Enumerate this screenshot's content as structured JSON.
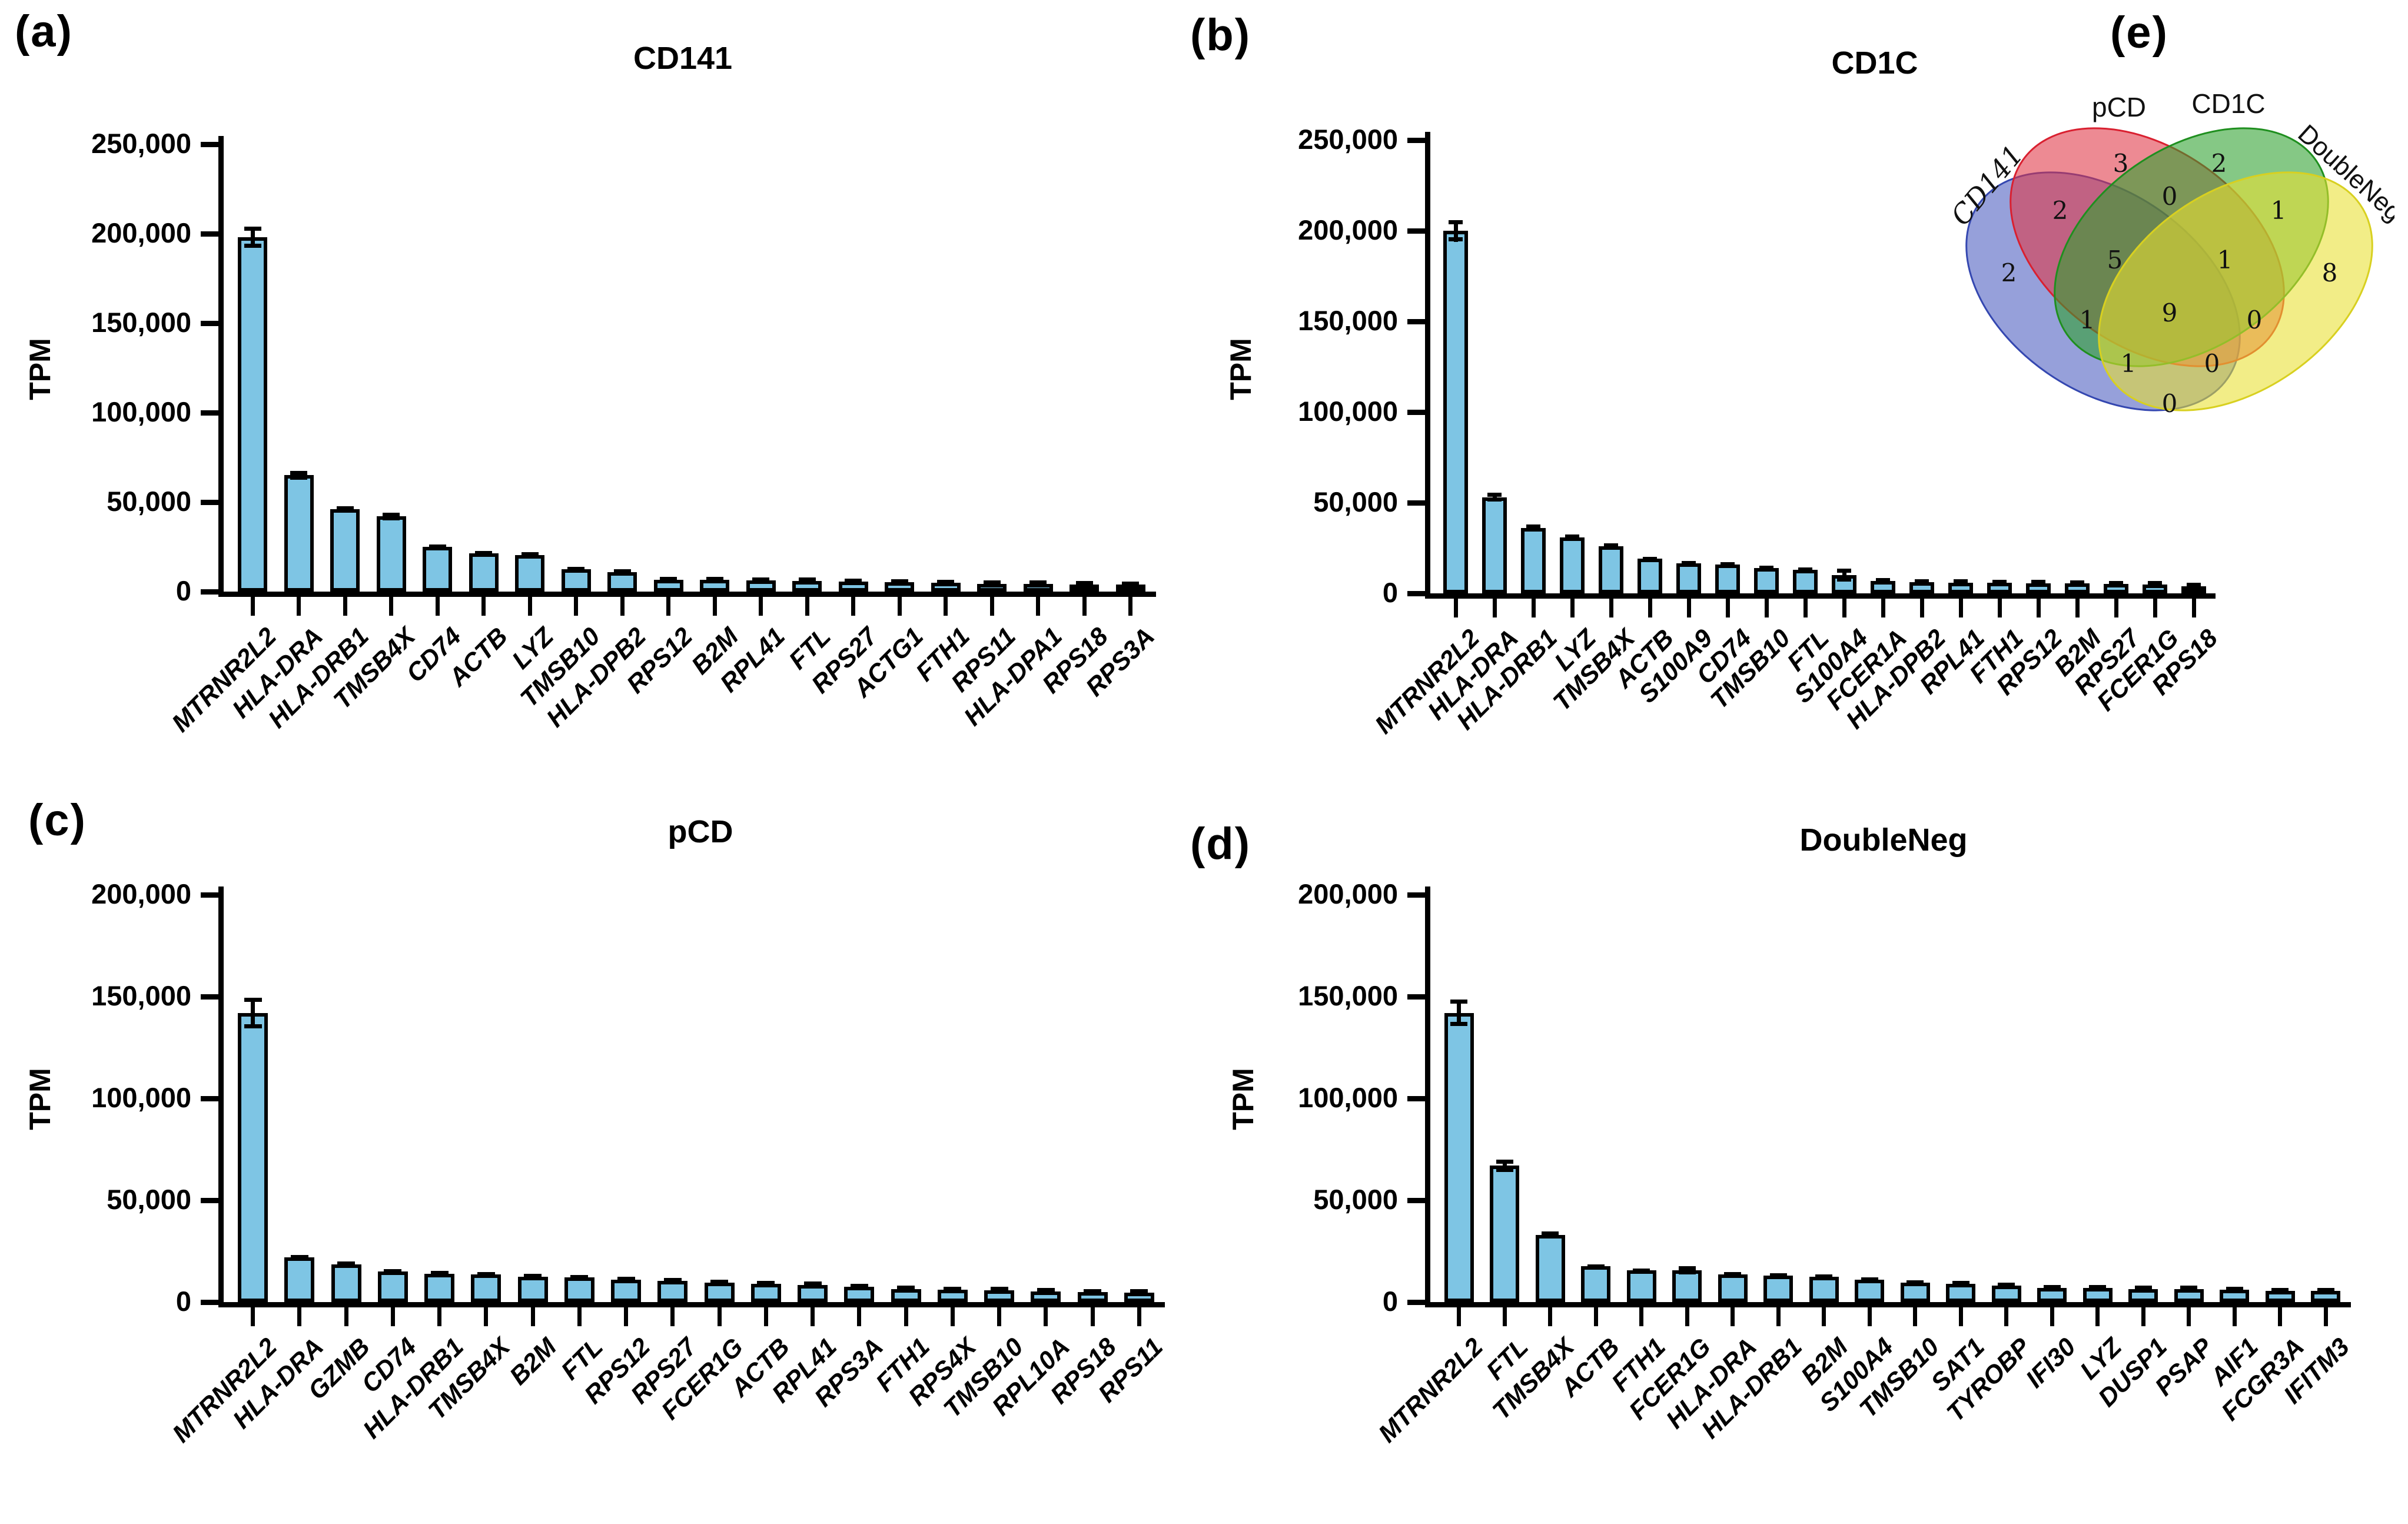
{
  "figure": {
    "background": "#ffffff",
    "bar_fill": "#7ec5e4",
    "bar_stroke": "#000000"
  },
  "chart_data": [
    {
      "type": "bar",
      "panel_letter": "(a)",
      "title": "CD141",
      "xlabel": "",
      "ylabel": "TPM",
      "ylim": [
        0,
        250000
      ],
      "grid": false,
      "yticks": [
        "250,000",
        "200,000",
        "150,000",
        "100,000",
        "50,000",
        "0"
      ],
      "ytick_values": [
        250000,
        200000,
        150000,
        100000,
        50000,
        0
      ],
      "categories": [
        "MTRNR2L2",
        "HLA-DRA",
        "HLA-DRB1",
        "TMSB4X",
        "CD74",
        "ACTB",
        "LYZ",
        "TMSB10",
        "HLA-DPB2",
        "RPS12",
        "B2M",
        "RPL41",
        "FTL",
        "RPS27",
        "ACTG1",
        "FTH1",
        "RPS11",
        "HLA-DPA1",
        "RPS18",
        "RPS3A"
      ],
      "values": [
        198000,
        65000,
        46000,
        42000,
        25000,
        21500,
        20500,
        12500,
        11000,
        6500,
        6500,
        6200,
        6000,
        5500,
        5200,
        4800,
        4300,
        4200,
        4000,
        3800
      ],
      "errors": [
        6000,
        2500,
        1800,
        2200,
        1200,
        1200,
        900,
        1100,
        900,
        600,
        600,
        600,
        500,
        500,
        500,
        400,
        400,
        400,
        350,
        350
      ]
    },
    {
      "type": "bar",
      "panel_letter": "(b)",
      "title": "CD1C",
      "xlabel": "",
      "ylabel": "TPM",
      "ylim": [
        0,
        250000
      ],
      "grid": false,
      "yticks": [
        "250,000",
        "200,000",
        "150,000",
        "100,000",
        "50,000",
        "0"
      ],
      "ytick_values": [
        250000,
        200000,
        150000,
        100000,
        50000,
        0
      ],
      "categories": [
        "MTRNR2L2",
        "HLA-DRA",
        "HLA-DRB1",
        "LYZ",
        "TMSB4X",
        "ACTB",
        "S100A9",
        "CD74",
        "TMSB10",
        "FTL",
        "S100A4",
        "FCER1A",
        "HLA-DPB2",
        "RPL41",
        "FTH1",
        "RPS12",
        "B2M",
        "RPS27",
        "FCER1G",
        "RPS18"
      ],
      "values": [
        200000,
        53000,
        36000,
        31000,
        26000,
        19000,
        16500,
        16000,
        14000,
        13000,
        10000,
        6800,
        6200,
        6000,
        5800,
        5600,
        5400,
        5200,
        5000,
        4000
      ],
      "errors": [
        6000,
        2500,
        2000,
        1500,
        1500,
        1000,
        1200,
        1000,
        900,
        900,
        3500,
        700,
        600,
        600,
        500,
        500,
        500,
        500,
        450,
        400
      ]
    },
    {
      "type": "bar",
      "panel_letter": "(c)",
      "title": "pCD",
      "xlabel": "",
      "ylabel": "TPM",
      "ylim": [
        0,
        200000
      ],
      "grid": false,
      "yticks": [
        "200,000",
        "150,000",
        "100,000",
        "50,000",
        "0"
      ],
      "ytick_values": [
        200000,
        150000,
        100000,
        50000,
        0
      ],
      "categories": [
        "MTRNR2L2",
        "HLA-DRA",
        "GZMB",
        "CD74",
        "HLA-DRB1",
        "TMSB4X",
        "B2M",
        "FTL",
        "RPS12",
        "RPS27",
        "FCER1G",
        "ACTB",
        "RPL41",
        "RPS3A",
        "FTH1",
        "RPS4X",
        "TMSB10",
        "RPL10A",
        "RPS18",
        "RPS11"
      ],
      "values": [
        142000,
        22000,
        18500,
        15000,
        14000,
        13500,
        12500,
        12000,
        11000,
        10500,
        9500,
        9000,
        8500,
        7500,
        6500,
        6000,
        5800,
        5200,
        4800,
        4500
      ],
      "errors": [
        7500,
        1200,
        1500,
        800,
        800,
        700,
        700,
        700,
        600,
        600,
        500,
        500,
        500,
        500,
        400,
        400,
        400,
        350,
        350,
        300
      ]
    },
    {
      "type": "bar",
      "panel_letter": "(d)",
      "title": "DoubleNeg",
      "xlabel": "",
      "ylabel": "TPM",
      "ylim": [
        0,
        200000
      ],
      "grid": false,
      "yticks": [
        "200,000",
        "150,000",
        "100,000",
        "50,000",
        "0"
      ],
      "ytick_values": [
        200000,
        150000,
        100000,
        50000,
        0
      ],
      "categories": [
        "MTRNR2L2",
        "FTL",
        "TMSB4X",
        "ACTB",
        "FTH1",
        "FCER1G",
        "HLA-DRA",
        "HLA-DRB1",
        "B2M",
        "S100A4",
        "TMSB10",
        "SAT1",
        "TYROBP",
        "IFI30",
        "LYZ",
        "DUSP1",
        "PSAP",
        "AIF1",
        "FCGR3A",
        "IFITM3"
      ],
      "values": [
        142000,
        67000,
        33000,
        17500,
        15500,
        15500,
        13500,
        13000,
        12500,
        11000,
        9500,
        9000,
        8000,
        7000,
        7000,
        6500,
        6500,
        6000,
        5500,
        5500
      ],
      "errors": [
        6500,
        3000,
        1800,
        1000,
        1000,
        2000,
        900,
        900,
        800,
        800,
        700,
        700,
        1500,
        600,
        600,
        500,
        500,
        500,
        450,
        450
      ]
    },
    {
      "type": "venn",
      "panel_letter": "(e)",
      "title": "",
      "sets": [
        {
          "name": "CD141",
          "fill": "#4a5bc0",
          "stroke": "#3447b0"
        },
        {
          "name": "pCD",
          "fill": "#e03545",
          "stroke": "#d92030"
        },
        {
          "name": "CD1C",
          "fill": "#2ca02c",
          "stroke": "#1f8f1f"
        },
        {
          "name": "DoubleNeg",
          "fill": "#e8e030",
          "stroke": "#d8d020"
        }
      ],
      "regions": [
        {
          "id": "CD141",
          "sets": [
            "CD141"
          ],
          "value": 2
        },
        {
          "id": "pCD",
          "sets": [
            "pCD"
          ],
          "value": 3
        },
        {
          "id": "CD1C",
          "sets": [
            "CD1C"
          ],
          "value": 2
        },
        {
          "id": "DoubleNeg",
          "sets": [
            "DoubleNeg"
          ],
          "value": 8
        },
        {
          "id": "CD141_pCD",
          "sets": [
            "CD141",
            "pCD"
          ],
          "value": 2
        },
        {
          "id": "pCD_CD1C",
          "sets": [
            "pCD",
            "CD1C"
          ],
          "value": 0
        },
        {
          "id": "CD1C_DoubleNeg",
          "sets": [
            "CD1C",
            "DoubleNeg"
          ],
          "value": 1
        },
        {
          "id": "CD141_CD1C",
          "sets": [
            "CD141",
            "CD1C"
          ],
          "value": 1
        },
        {
          "id": "pCD_DoubleNeg",
          "sets": [
            "pCD",
            "DoubleNeg"
          ],
          "value": 0
        },
        {
          "id": "CD141_DoubleNeg",
          "sets": [
            "CD141",
            "DoubleNeg"
          ],
          "value": 0
        },
        {
          "id": "CD141_pCD_CD1C",
          "sets": [
            "CD141",
            "pCD",
            "CD1C"
          ],
          "value": 5
        },
        {
          "id": "pCD_CD1C_DoubleNeg",
          "sets": [
            "pCD",
            "CD1C",
            "DoubleNeg"
          ],
          "value": 1
        },
        {
          "id": "CD141_CD1C_DoubleNeg",
          "sets": [
            "CD141",
            "CD1C",
            "DoubleNeg"
          ],
          "value": 1
        },
        {
          "id": "CD141_pCD_DoubleNeg",
          "sets": [
            "CD141",
            "pCD",
            "DoubleNeg"
          ],
          "value": 0
        },
        {
          "id": "CD141_pCD_CD1C_DoubleNeg",
          "sets": [
            "CD141",
            "pCD",
            "CD1C",
            "DoubleNeg"
          ],
          "value": 9
        }
      ]
    }
  ]
}
